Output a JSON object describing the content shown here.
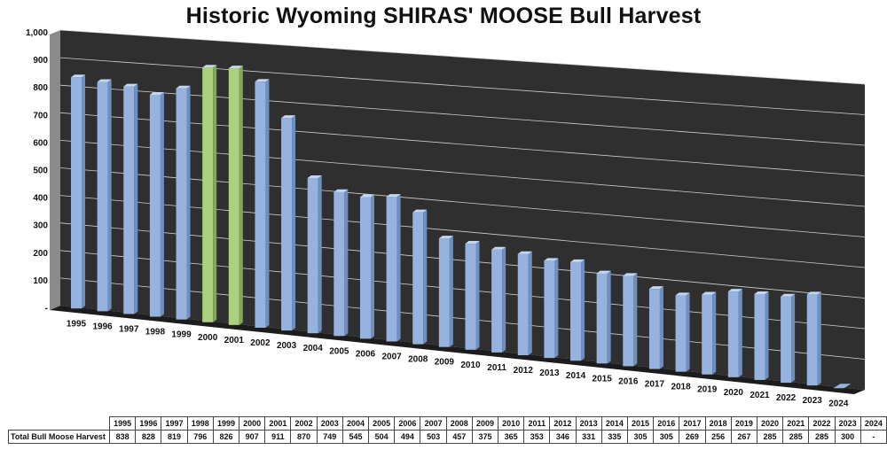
{
  "chart_data": {
    "type": "bar",
    "title": "Historic Wyoming SHIRAS' MOOSE Bull Harvest",
    "xlabel": "",
    "ylabel": "",
    "ylim": [
      0,
      1000
    ],
    "yticks": [
      "-",
      "100",
      "200",
      "300",
      "400",
      "500",
      "600",
      "700",
      "800",
      "900",
      "1,000"
    ],
    "categories": [
      "1995",
      "1996",
      "1997",
      "1998",
      "1999",
      "2000",
      "2001",
      "2002",
      "2003",
      "2004",
      "2005",
      "2006",
      "2007",
      "2008",
      "2009",
      "2010",
      "2011",
      "2012",
      "2013",
      "2014",
      "2015",
      "2016",
      "2017",
      "2018",
      "2019",
      "2020",
      "2021",
      "2022",
      "2023",
      "2024"
    ],
    "series": [
      {
        "name": "Total Bull Moose Harvest",
        "values": [
          838,
          828,
          819,
          796,
          826,
          907,
          911,
          870,
          749,
          545,
          504,
          494,
          503,
          457,
          375,
          365,
          353,
          346,
          331,
          335,
          305,
          305,
          269,
          256,
          267,
          285,
          285,
          285,
          300,
          0
        ],
        "labels": [
          "838",
          "828",
          "819",
          "796",
          "826",
          "907",
          "911",
          "870",
          "749",
          "545",
          "504",
          "494",
          "503",
          "457",
          "375",
          "365",
          "353",
          "346",
          "331",
          "335",
          "305",
          "305",
          "269",
          "256",
          "267",
          "285",
          "285",
          "285",
          "300",
          "-"
        ]
      }
    ],
    "highlighted_categories": [
      "2000",
      "2001"
    ],
    "colors": {
      "bar": "#95b3de",
      "bar_highlight": "#a9d17e",
      "plot_background": "#2f2f2f",
      "gridline": "#d0d0d0"
    },
    "grid": true,
    "legend": "none",
    "data_table": true
  }
}
